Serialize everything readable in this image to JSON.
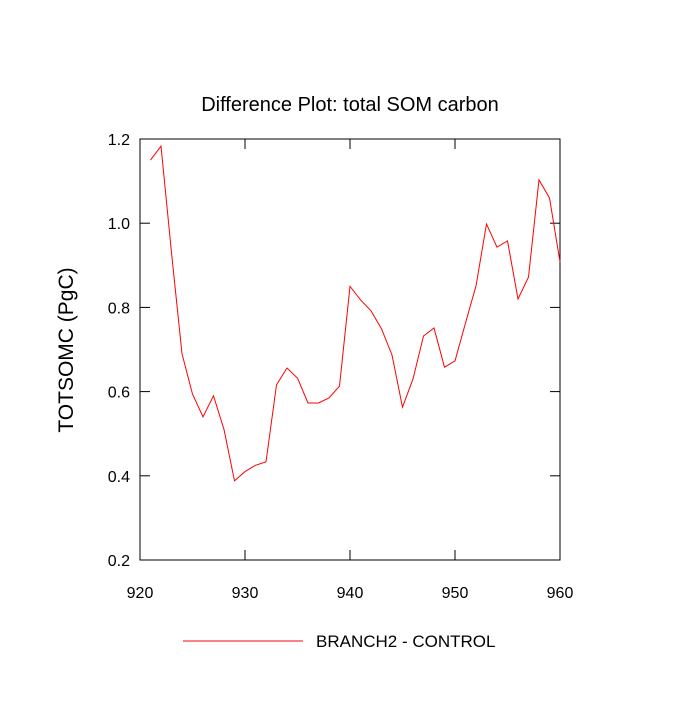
{
  "chart_data": {
    "type": "line",
    "title": "Difference Plot: total SOM carbon",
    "y_label": "TOTSOMC  (PgC)",
    "x": [
      921,
      922,
      923,
      924,
      925,
      926,
      927,
      928,
      929,
      930,
      931,
      932,
      933,
      934,
      935,
      936,
      937,
      938,
      939,
      940,
      941,
      942,
      943,
      944,
      945,
      946,
      947,
      948,
      949,
      950,
      951,
      952,
      953,
      954,
      955,
      956,
      957,
      958,
      959,
      960
    ],
    "series": [
      {
        "name": "BRANCH2 - CONTROL",
        "color": "#ff0000",
        "values": [
          1.15,
          1.183,
          0.93,
          0.69,
          0.594,
          0.54,
          0.59,
          0.51,
          0.388,
          0.41,
          0.425,
          0.433,
          0.616,
          0.656,
          0.632,
          0.573,
          0.573,
          0.585,
          0.613,
          0.85,
          0.818,
          0.792,
          0.749,
          0.687,
          0.563,
          0.63,
          0.732,
          0.751,
          0.658,
          0.673,
          0.763,
          0.851,
          0.998,
          0.943,
          0.958,
          0.82,
          0.872,
          1.103,
          1.06,
          0.908
        ]
      }
    ],
    "xlim": [
      920,
      960
    ],
    "xticks": [
      920,
      930,
      940,
      950,
      960
    ],
    "ylim": [
      0.2,
      1.2
    ],
    "yticks": [
      {
        "value": 0.2,
        "label": "0.2"
      },
      {
        "value": 0.4,
        "label": "0.4"
      },
      {
        "value": 0.6,
        "label": "0.6"
      },
      {
        "value": 0.8,
        "label": "0.8"
      },
      {
        "value": 1.0,
        "label": "1.0"
      },
      {
        "value": 1.2,
        "label": "1.2"
      }
    ],
    "legend": "bottom"
  }
}
